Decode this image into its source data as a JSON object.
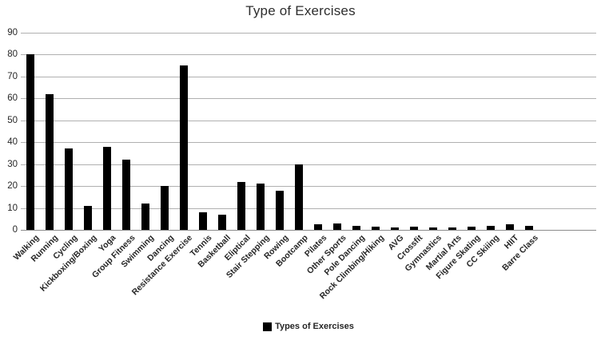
{
  "chart_data": {
    "type": "bar",
    "title": "Type of Exercises",
    "series_name": "Types of Exercises",
    "categories": [
      "Walking",
      "Running",
      "Cycling",
      "Kickboxing/Boxing",
      "Yoga",
      "Group Fitness",
      "Swimming",
      "Dancing",
      "Resistance Exercise",
      "Tennis",
      "Basketball",
      "Eliptical",
      "Stair Stepping",
      "Rowing",
      "Bootcamp",
      "Pilates",
      "Other Sports",
      "Pole Dancing",
      "Rock Climbing/Hiking",
      "AVG",
      "Crossfit",
      "Gymnastics",
      "Martial Arts",
      "Figure Skating",
      "CC Skiiing",
      "HIIT",
      "Barre Class"
    ],
    "values": [
      80,
      62,
      37,
      11,
      38,
      32,
      12,
      20,
      75,
      8,
      7,
      22,
      21,
      18,
      30,
      2.5,
      3,
      2,
      1.5,
      1,
      1.5,
      1,
      1,
      1.5,
      2,
      2.5,
      2
    ],
    "xlabel": "",
    "ylabel": "",
    "ylim": [
      0,
      90
    ],
    "ytick_step": 10,
    "grid": true,
    "legend_position": "bottom",
    "colors": {
      "bar": "#000000",
      "gridline": "#b0b0b0",
      "axis_line": "#8c8c8c",
      "text": "#262626"
    }
  }
}
